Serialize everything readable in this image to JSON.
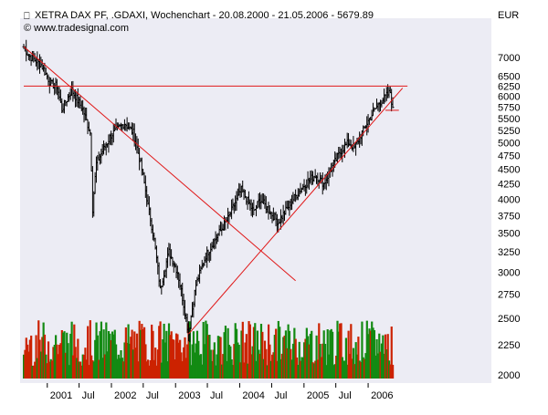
{
  "header": {
    "title": "XETRA DAX PF, .GDAXI, Wochenchart - 20.08.2000 - 21.05.2006 - 5679.89",
    "source": "© www.tradesignal.com",
    "currency": "EUR"
  },
  "colors": {
    "plot_bg": "#ececf4",
    "price_bar": "#000000",
    "trendline": "#e01818",
    "volume_up": "#138a13",
    "volume_down": "#cc2200"
  },
  "chart_data": {
    "type": "ohlc",
    "title": "XETRA DAX PF, .GDAXI, Wochenchart - 20.08.2000 - 21.05.2006 - 5679.89",
    "x_ticks": [
      "2001",
      "Jul",
      "2002",
      "Jul",
      "2003",
      "Jul",
      "2004",
      "Jul",
      "2005",
      "Jul",
      "2006"
    ],
    "x_tick_dates": [
      "2001-01-01",
      "2001-07-01",
      "2002-01-01",
      "2002-07-01",
      "2003-01-01",
      "2003-07-01",
      "2004-01-01",
      "2004-07-01",
      "2005-01-01",
      "2005-07-01",
      "2006-01-01"
    ],
    "x_range": [
      "2000-08-20",
      "2006-05-21"
    ],
    "y_ticks": [
      2000,
      2250,
      2500,
      2750,
      3000,
      3250,
      3500,
      3750,
      4000,
      4250,
      4500,
      4750,
      5000,
      5250,
      5500,
      5750,
      6000,
      6250,
      6500,
      7000
    ],
    "y_tick_labels": [
      "2000",
      "2250",
      "2500",
      "2750",
      "3000",
      "3250",
      "3500",
      "3750",
      "4000",
      "4250",
      "4500",
      "4750",
      "5000",
      "5250",
      "5500",
      "5750",
      "6000",
      "6250",
      "6500",
      "7000"
    ],
    "y_scale": "log",
    "y_range": [
      1950,
      7600
    ],
    "y_unit": "EUR",
    "grid": false,
    "legend": "none",
    "price_anchors": [
      {
        "date": "2000-08-20",
        "close": 7300
      },
      {
        "date": "2000-09-17",
        "close": 7050
      },
      {
        "date": "2000-11-26",
        "close": 6800
      },
      {
        "date": "2001-01-21",
        "close": 6300
      },
      {
        "date": "2001-02-25",
        "close": 6250
      },
      {
        "date": "2001-03-25",
        "close": 5700
      },
      {
        "date": "2001-05-20",
        "close": 6150
      },
      {
        "date": "2001-07-22",
        "close": 5700
      },
      {
        "date": "2001-09-02",
        "close": 5200
      },
      {
        "date": "2001-09-16",
        "close": 3850
      },
      {
        "date": "2001-10-07",
        "close": 4600
      },
      {
        "date": "2001-12-30",
        "close": 5150
      },
      {
        "date": "2002-03-17",
        "close": 5400
      },
      {
        "date": "2002-05-05",
        "close": 5200
      },
      {
        "date": "2002-06-23",
        "close": 4500
      },
      {
        "date": "2002-07-28",
        "close": 3900
      },
      {
        "date": "2002-09-01",
        "close": 3400
      },
      {
        "date": "2002-10-06",
        "close": 2800
      },
      {
        "date": "2002-11-24",
        "close": 3250
      },
      {
        "date": "2003-01-12",
        "close": 3000
      },
      {
        "date": "2003-03-16",
        "close": 2350
      },
      {
        "date": "2003-04-27",
        "close": 2850
      },
      {
        "date": "2003-06-22",
        "close": 3200
      },
      {
        "date": "2003-08-24",
        "close": 3450
      },
      {
        "date": "2003-10-26",
        "close": 3700
      },
      {
        "date": "2004-01-11",
        "close": 4150
      },
      {
        "date": "2004-03-21",
        "close": 3800
      },
      {
        "date": "2004-04-25",
        "close": 4000
      },
      {
        "date": "2004-08-08",
        "close": 3650
      },
      {
        "date": "2004-10-31",
        "close": 4000
      },
      {
        "date": "2005-01-09",
        "close": 4250
      },
      {
        "date": "2005-03-06",
        "close": 4400
      },
      {
        "date": "2005-04-24",
        "close": 4250
      },
      {
        "date": "2005-07-31",
        "close": 4850
      },
      {
        "date": "2005-09-11",
        "close": 5000
      },
      {
        "date": "2005-10-16",
        "close": 4900
      },
      {
        "date": "2005-12-25",
        "close": 5400
      },
      {
        "date": "2006-03-05",
        "close": 5850
      },
      {
        "date": "2006-05-07",
        "close": 6100
      },
      {
        "date": "2006-05-21",
        "close": 5680
      }
    ],
    "last_close": 5679.89,
    "annotations": [
      {
        "kind": "resistance_line",
        "level": 6250,
        "from": "2000-08-20",
        "to": "2006-08-13"
      },
      {
        "kind": "downtrend_line",
        "from": {
          "date": "2000-08-20",
          "value": 7300
        },
        "to": {
          "date": "2004-11-14",
          "value": 2900
        }
      },
      {
        "kind": "uptrend_line",
        "from": {
          "date": "2003-03-16",
          "value": 2350
        },
        "to": {
          "date": "2006-07-16",
          "value": 6200
        }
      },
      {
        "kind": "support_marker",
        "level": 5680,
        "from": "2006-04-09",
        "to": "2006-06-25"
      }
    ]
  }
}
